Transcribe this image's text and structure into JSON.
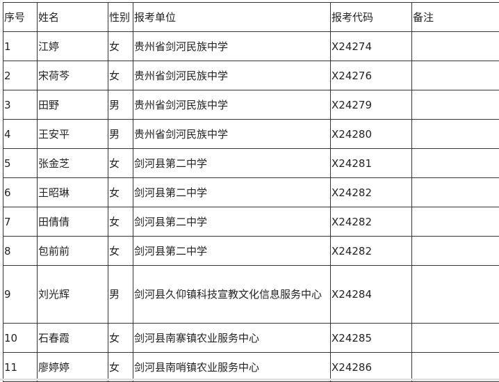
{
  "headers": [
    "序号",
    "姓名",
    "性别",
    "报考单位",
    "报考代码",
    "备注"
  ],
  "rows": [
    [
      "1",
      "江婷",
      "女",
      "贵州省剑河民族中学",
      "X24274",
      ""
    ],
    [
      "2",
      "宋荷芩",
      "女",
      "贵州省剑河民族中学",
      "X24276",
      ""
    ],
    [
      "3",
      "田野",
      "男",
      "贵州省剑河民族中学",
      "X24279",
      ""
    ],
    [
      "4",
      "王安平",
      "男",
      "贵州省剑河民族中学",
      "X24280",
      ""
    ],
    [
      "5",
      "张金芝",
      "女",
      "剑河县第二中学",
      "X24281",
      ""
    ],
    [
      "6",
      "王昭琳",
      "女",
      "剑河县第二中学",
      "X24282",
      ""
    ],
    [
      "7",
      "田倩倩",
      "女",
      "剑河县第二中学",
      "X24282",
      ""
    ],
    [
      "8",
      "包前前",
      "女",
      "剑河县第二中学",
      "X24282",
      ""
    ],
    [
      "9",
      "刘光辉",
      "男",
      "剑河县久仰镇科技宣教文化信息服务中心",
      "X24284",
      ""
    ],
    [
      "10",
      "石春霞",
      "女",
      "剑河县南寨镇农业服务中心",
      "X24285",
      ""
    ],
    [
      "11",
      "廖婷婷",
      "女",
      "剑河县南哨镇农业服务中心",
      "X24286",
      ""
    ]
  ]
}
